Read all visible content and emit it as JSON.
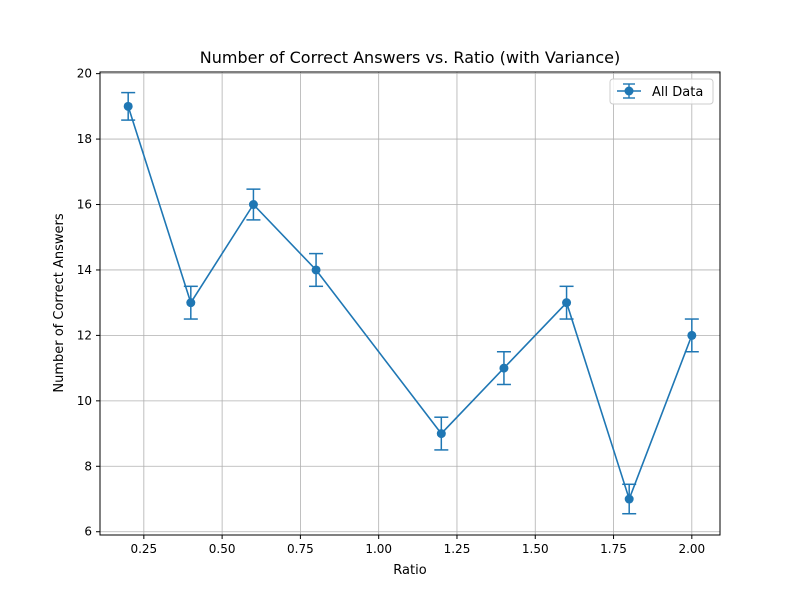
{
  "chart_data": {
    "type": "line",
    "title": "Number of Correct Answers vs. Ratio (with Variance)",
    "xlabel": "Ratio",
    "ylabel": "Number of Correct Answers",
    "xlim": [
      0.11,
      2.09
    ],
    "ylim": [
      5.9,
      20.05
    ],
    "xticks": [
      0.25,
      0.5,
      0.75,
      1.0,
      1.25,
      1.5,
      1.75,
      2.0
    ],
    "xtick_labels": [
      "0.25",
      "0.50",
      "0.75",
      "1.00",
      "1.25",
      "1.50",
      "1.75",
      "2.00"
    ],
    "yticks": [
      6,
      8,
      10,
      12,
      14,
      16,
      18,
      20
    ],
    "ytick_labels": [
      "6",
      "8",
      "10",
      "12",
      "14",
      "16",
      "18",
      "20"
    ],
    "grid": true,
    "legend_position": "top-right",
    "series": [
      {
        "name": "All Data",
        "color": "#1f77b4",
        "marker": "circle",
        "x": [
          0.2,
          0.4,
          0.6,
          0.8,
          1.2,
          1.4,
          1.6,
          1.8,
          2.0
        ],
        "y": [
          19,
          13,
          16,
          14,
          9,
          11,
          13,
          7,
          12
        ],
        "yerr": [
          0.42,
          0.5,
          0.47,
          0.5,
          0.5,
          0.5,
          0.5,
          0.45,
          0.5
        ]
      }
    ]
  }
}
